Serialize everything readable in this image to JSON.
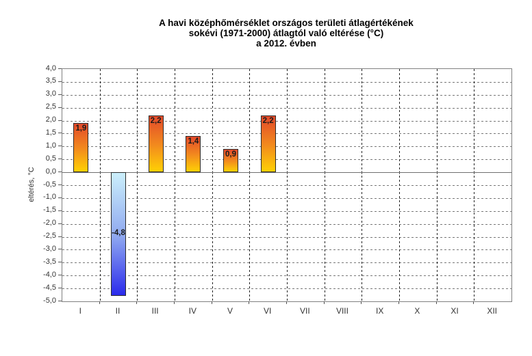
{
  "chart_data": {
    "type": "bar",
    "title_lines": [
      "A havi középhőmérséklet országos területi átlagértékének",
      "sokévi (1971-2000) átlagtól való eltérése (°C)",
      "a 2012. évben"
    ],
    "title": "A havi középhőmérséklet országos területi átlagértékének sokévi (1971-2000) átlagtól való eltérése (°C) a 2012. évben",
    "ylabel": "eltérés, °C",
    "xlabel": "",
    "categories": [
      "I",
      "II",
      "III",
      "IV",
      "V",
      "VI",
      "VII",
      "VIII",
      "IX",
      "X",
      "XI",
      "XII"
    ],
    "values": [
      1.9,
      -4.8,
      2.2,
      1.4,
      0.9,
      2.2,
      null,
      null,
      null,
      null,
      null,
      null
    ],
    "value_labels": [
      "1,9",
      "-4,8",
      "2,2",
      "1,4",
      "0,9",
      "2,2",
      "",
      "",
      "",
      "",
      "",
      ""
    ],
    "ylim": [
      -5.0,
      4.0
    ],
    "ytick_step": 0.5,
    "ytick_labels": [
      "4,0",
      "3,5",
      "3,0",
      "2,5",
      "2,0",
      "1,5",
      "1,0",
      "0,5",
      "0,0",
      "-0,5",
      "-1,0",
      "-1,5",
      "-2,0",
      "-2,5",
      "-3,0",
      "-3,5",
      "-4,0",
      "-4,5",
      "-5,0"
    ],
    "grid": {
      "horizontal": "dashed",
      "vertical": "dashed",
      "zero_line": "solid"
    },
    "legend": "none",
    "colors": {
      "positive_bar_top": "#e2492a",
      "positive_bar_mid": "#f28a1e",
      "positive_bar_bottom": "#ffd104",
      "negative_bar_top": "#cbeffb",
      "negative_bar_mid": "#8fa8f0",
      "negative_bar_bottom": "#2b2bec",
      "bar_border": "#2b2b2b",
      "plot_border": "#808080",
      "h_grid": "#777777",
      "v_grid": "#222222",
      "tick_text": "#333333",
      "title_text": "#000000"
    }
  }
}
